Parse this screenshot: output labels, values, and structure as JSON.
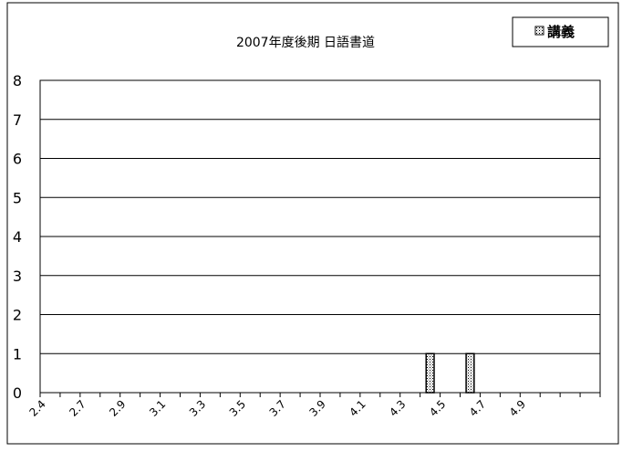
{
  "chart_data": {
    "type": "bar",
    "title": "2007年度後期  日語書道",
    "xlabel": "",
    "ylabel": "",
    "x_ticks": [
      "2.4",
      "2.7",
      "2.9",
      "3.1",
      "3.3",
      "3.5",
      "3.7",
      "3.9",
      "4.1",
      "4.3",
      "4.5",
      "4.7",
      "4.9"
    ],
    "ylim": [
      0,
      8
    ],
    "y_ticks": [
      "0",
      "1",
      "2",
      "3",
      "4",
      "5",
      "6",
      "7",
      "8"
    ],
    "grid": true,
    "legend_position": "top-right",
    "series": [
      {
        "name": "講義",
        "points": [
          {
            "x": 4.45,
            "y": 1
          },
          {
            "x": 4.65,
            "y": 1
          }
        ]
      }
    ]
  }
}
